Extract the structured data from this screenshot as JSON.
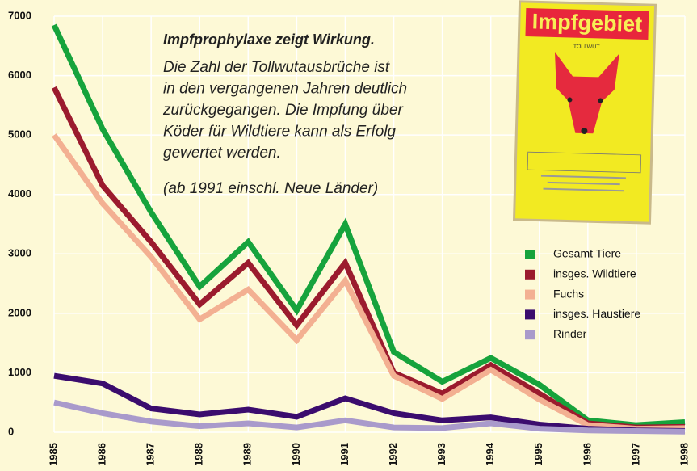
{
  "chart_data": {
    "type": "line",
    "title": "Impfprophylaxe zeigt Wirkung.",
    "annotation": [
      "Die Zahl der Tollwutausbrüche ist",
      "in den vergangenen Jahren deutlich",
      "zurückgegangen. Die Impfung über",
      "Köder für Wildtiere kann als Erfolg",
      "gewertet werden."
    ],
    "note": "(ab 1991 einschl. Neue Länder)",
    "poster": {
      "title": "Impfgebiet",
      "subtitle": "TOLLWUT"
    },
    "x": [
      1985,
      1986,
      1987,
      1988,
      1989,
      1990,
      1991,
      1992,
      1993,
      1994,
      1995,
      1996,
      1997,
      1998
    ],
    "xticks": [
      1985,
      1986,
      1987,
      1988,
      1989,
      1990,
      1991,
      1992,
      1993,
      1994,
      1995,
      1996,
      1997,
      1998
    ],
    "xlim": [
      1985,
      1998
    ],
    "ylim": [
      0,
      7000
    ],
    "yticks": [
      0,
      1000,
      2000,
      3000,
      4000,
      5000,
      6000,
      7000
    ],
    "grid": true,
    "legend": "right",
    "series": [
      {
        "name": "Gesamt Tiere",
        "color": "#16a33c",
        "values": [
          6850,
          5100,
          3700,
          2450,
          3200,
          2050,
          3500,
          1350,
          850,
          1250,
          800,
          200,
          120,
          170
        ]
      },
      {
        "name": "insges. Wildtiere",
        "color": "#9b1b2e",
        "values": [
          5800,
          4150,
          3200,
          2150,
          2850,
          1800,
          2850,
          1000,
          650,
          1130,
          650,
          150,
          80,
          90
        ]
      },
      {
        "name": "Fuchs",
        "color": "#f3b092",
        "values": [
          5000,
          3850,
          2950,
          1900,
          2400,
          1550,
          2550,
          950,
          560,
          1050,
          550,
          120,
          60,
          70
        ]
      },
      {
        "name": "insges. Haustiere",
        "color": "#3b0c6e",
        "values": [
          950,
          820,
          400,
          300,
          380,
          260,
          570,
          320,
          200,
          250,
          130,
          60,
          30,
          20
        ]
      },
      {
        "name": "Rinder",
        "color": "#a99acb",
        "values": [
          500,
          320,
          180,
          100,
          150,
          80,
          200,
          80,
          70,
          150,
          60,
          30,
          20,
          10
        ]
      }
    ]
  }
}
